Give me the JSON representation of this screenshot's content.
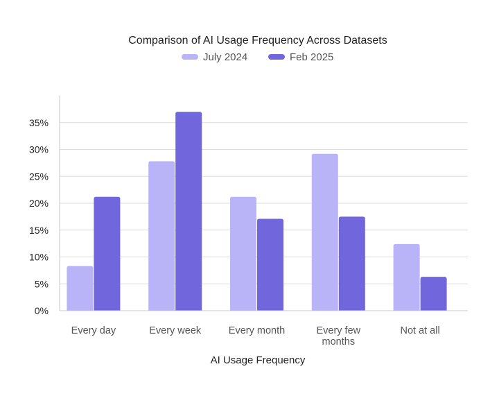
{
  "chart_data": {
    "type": "bar",
    "title": "Comparison of AI Usage Frequency Across Datasets",
    "xlabel": "AI Usage Frequency",
    "ylabel": "",
    "categories": [
      [
        "Every day"
      ],
      [
        "Every week"
      ],
      [
        "Every month"
      ],
      [
        "Every few",
        "months"
      ],
      [
        "Not at all"
      ]
    ],
    "series": [
      {
        "name": "July 2024",
        "color": "#b9b3f7",
        "values": [
          8.3,
          27.8,
          21.2,
          29.2,
          12.4
        ]
      },
      {
        "name": "Feb 2025",
        "color": "#7266dd",
        "values": [
          21.2,
          37.0,
          17.1,
          17.5,
          6.3
        ]
      }
    ],
    "ylim": [
      0,
      40
    ],
    "yticks": [
      0,
      5,
      10,
      15,
      20,
      25,
      30,
      35
    ],
    "ytick_labels": [
      "0%",
      "5%",
      "10%",
      "15%",
      "20%",
      "25%",
      "30%",
      "35%"
    ],
    "grid": true,
    "legend_position": "top-center"
  }
}
